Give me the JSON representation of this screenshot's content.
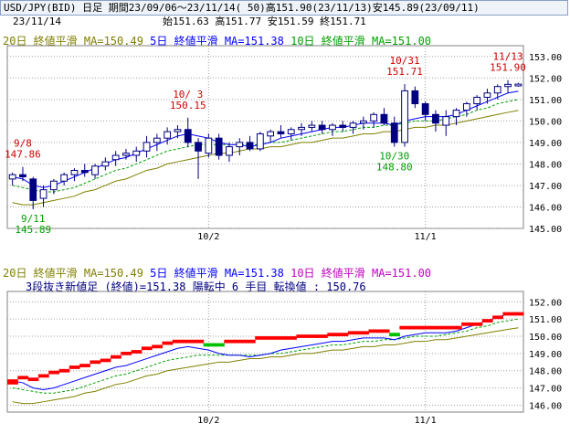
{
  "header": {
    "title": "USD/JPY(BID) 日足 期間23/09/06～23/11/14( 50)高151.90(23/11/13)安145.89(23/09/11)",
    "date": "23/11/14",
    "ohlc": "始151.63 高151.77 安151.59 終151.71"
  },
  "legend_top": {
    "ma20": "20日 終値平滑 MA=150.49",
    "ma5": "5日 終値平滑 MA=151.38",
    "ma10": "10日 終値平滑 MA=151.00"
  },
  "legend_bottom": {
    "ma20": "20日 終値平滑 MA=150.49",
    "ma5": "5日 終値平滑 MA=151.38",
    "ma10": "10日 終値平滑 MA=151.00",
    "kagi": "3段抜き新値足 (終値)=151.38 陽転中  6 手目 転換値 : 150.76"
  },
  "colors": {
    "up": "#ffffff",
    "down": "#000080",
    "ma5": "#0000ff",
    "ma10": "#00a000",
    "ma20": "#808000",
    "annot_high": "#d00000",
    "annot_low": "#00a000",
    "kagi_up": "#ff0000",
    "kagi_down": "#00c000",
    "grid": "#a0a0a0"
  },
  "chart_data": [
    {
      "type": "candlestick",
      "title": "USD/JPY(BID) 日足",
      "ylim": [
        145.0,
        153.5
      ],
      "y_ticks": [
        "153.00",
        "152.00",
        "151.00",
        "150.00",
        "149.00",
        "148.00",
        "147.00",
        "146.00",
        "145.00"
      ],
      "x_tick_labels": [
        "10/2",
        "11/1"
      ],
      "candles": [
        [
          147.3,
          147.6,
          147.0,
          147.5
        ],
        [
          147.5,
          147.86,
          147.2,
          147.4
        ],
        [
          147.3,
          147.4,
          145.89,
          146.3
        ],
        [
          146.4,
          147.0,
          146.0,
          146.8
        ],
        [
          146.8,
          147.3,
          146.6,
          147.2
        ],
        [
          147.2,
          147.6,
          147.0,
          147.5
        ],
        [
          147.5,
          147.8,
          147.2,
          147.7
        ],
        [
          147.7,
          148.0,
          147.4,
          147.6
        ],
        [
          147.5,
          148.0,
          147.3,
          147.9
        ],
        [
          147.9,
          148.3,
          147.7,
          148.1
        ],
        [
          148.2,
          148.6,
          147.9,
          148.4
        ],
        [
          148.4,
          148.7,
          148.2,
          148.5
        ],
        [
          148.4,
          148.8,
          148.1,
          148.6
        ],
        [
          148.6,
          149.3,
          148.3,
          149.0
        ],
        [
          149.0,
          149.4,
          148.6,
          149.2
        ],
        [
          149.2,
          149.7,
          148.9,
          149.5
        ],
        [
          149.5,
          149.8,
          149.2,
          149.6
        ],
        [
          149.6,
          150.15,
          148.8,
          149.0
        ],
        [
          149.0,
          149.2,
          147.3,
          148.6
        ],
        [
          148.5,
          149.4,
          148.3,
          149.2
        ],
        [
          149.2,
          149.4,
          148.2,
          148.4
        ],
        [
          148.4,
          149.0,
          148.1,
          148.8
        ],
        [
          148.8,
          149.2,
          148.4,
          149.0
        ],
        [
          149.0,
          149.3,
          148.6,
          148.7
        ],
        [
          148.7,
          149.5,
          148.6,
          149.4
        ],
        [
          149.3,
          149.6,
          149.0,
          149.5
        ],
        [
          149.5,
          149.8,
          149.2,
          149.4
        ],
        [
          149.4,
          149.7,
          149.1,
          149.6
        ],
        [
          149.6,
          149.9,
          149.3,
          149.7
        ],
        [
          149.7,
          150.0,
          149.5,
          149.8
        ],
        [
          149.8,
          150.0,
          149.4,
          149.6
        ],
        [
          149.6,
          149.9,
          149.3,
          149.8
        ],
        [
          149.8,
          150.0,
          149.5,
          149.7
        ],
        [
          149.7,
          150.0,
          149.4,
          149.9
        ],
        [
          149.9,
          150.2,
          149.6,
          150.0
        ],
        [
          150.0,
          150.4,
          149.7,
          150.3
        ],
        [
          150.3,
          150.6,
          149.8,
          149.9
        ],
        [
          149.9,
          150.2,
          148.8,
          149.0
        ],
        [
          149.0,
          151.71,
          148.8,
          151.4
        ],
        [
          151.4,
          151.6,
          150.6,
          150.8
        ],
        [
          150.8,
          150.9,
          150.0,
          150.3
        ],
        [
          150.3,
          150.5,
          149.5,
          149.9
        ],
        [
          149.8,
          150.5,
          149.3,
          150.2
        ],
        [
          150.2,
          150.6,
          149.8,
          150.5
        ],
        [
          150.5,
          150.9,
          150.2,
          150.8
        ],
        [
          150.8,
          151.2,
          150.5,
          151.1
        ],
        [
          151.1,
          151.5,
          150.8,
          151.3
        ],
        [
          151.3,
          151.7,
          151.0,
          151.6
        ],
        [
          151.6,
          151.9,
          151.3,
          151.7
        ],
        [
          151.63,
          151.77,
          151.59,
          151.71
        ]
      ],
      "annotations": [
        {
          "date": "9/8",
          "value": "147.86",
          "kind": "high",
          "index": 1
        },
        {
          "date": "9/11",
          "value": "145.89",
          "kind": "low",
          "index": 2
        },
        {
          "date": "10/ 3",
          "value": "150.15",
          "kind": "high",
          "index": 17
        },
        {
          "date": "10/31",
          "value": "151.71",
          "kind": "high",
          "index": 38
        },
        {
          "date": "10/30",
          "value": "148.80",
          "kind": "low",
          "index": 37
        },
        {
          "date": "11/13",
          "value": "151.90",
          "kind": "high",
          "index": 48
        }
      ],
      "series": [
        {
          "name": "5日 終値平滑",
          "values": [
            147.4,
            147.3,
            147.0,
            146.9,
            147.0,
            147.2,
            147.4,
            147.6,
            147.8,
            148.0,
            148.2,
            148.3,
            148.5,
            148.7,
            148.9,
            149.1,
            149.3,
            149.4,
            149.3,
            149.2,
            149.0,
            148.9,
            148.9,
            148.8,
            148.9,
            149.0,
            149.2,
            149.3,
            149.4,
            149.5,
            149.6,
            149.7,
            149.7,
            149.8,
            149.9,
            149.9,
            149.9,
            149.8,
            150.0,
            150.1,
            150.2,
            150.2,
            150.2,
            150.3,
            150.5,
            150.7,
            150.9,
            151.1,
            151.3,
            151.38
          ]
        },
        {
          "name": "10日 終値平滑",
          "values": [
            147.0,
            146.9,
            146.8,
            146.7,
            146.7,
            146.8,
            146.9,
            147.1,
            147.3,
            147.5,
            147.7,
            147.8,
            148.0,
            148.2,
            148.4,
            148.6,
            148.7,
            148.8,
            148.9,
            148.9,
            148.9,
            148.9,
            148.9,
            148.9,
            148.9,
            149.0,
            149.0,
            149.1,
            149.2,
            149.3,
            149.4,
            149.5,
            149.5,
            149.6,
            149.7,
            149.7,
            149.8,
            149.8,
            149.9,
            150.0,
            150.0,
            150.0,
            150.1,
            150.2,
            150.3,
            150.5,
            150.6,
            150.8,
            150.9,
            151.0
          ]
        },
        {
          "name": "20日 終値平滑",
          "values": [
            146.2,
            146.1,
            146.1,
            146.2,
            146.3,
            146.4,
            146.5,
            146.7,
            146.8,
            147.0,
            147.2,
            147.3,
            147.5,
            147.7,
            147.8,
            148.0,
            148.1,
            148.2,
            148.3,
            148.4,
            148.5,
            148.5,
            148.6,
            148.7,
            148.7,
            148.8,
            148.8,
            148.9,
            149.0,
            149.0,
            149.1,
            149.2,
            149.2,
            149.3,
            149.4,
            149.4,
            149.5,
            149.5,
            149.6,
            149.7,
            149.7,
            149.8,
            149.8,
            149.9,
            150.0,
            150.1,
            150.2,
            150.3,
            150.4,
            150.49
          ]
        }
      ]
    },
    {
      "type": "kagi_newprice",
      "title": "3段抜き新値足 (終値)",
      "ylim": [
        145.6,
        152.6
      ],
      "y_ticks": [
        "152.00",
        "151.00",
        "150.00",
        "149.00",
        "148.00",
        "147.00",
        "146.00"
      ],
      "x_tick_labels": [
        "10/2",
        "11/1"
      ],
      "bricks": [
        [
          147.2,
          147.5,
          "up"
        ],
        [
          147.5,
          147.7,
          "up"
        ],
        [
          147.4,
          147.6,
          "up"
        ],
        [
          147.6,
          147.8,
          "up"
        ],
        [
          147.8,
          148.0,
          "up"
        ],
        [
          147.9,
          148.1,
          "up"
        ],
        [
          148.1,
          148.3,
          "up"
        ],
        [
          148.2,
          148.4,
          "up"
        ],
        [
          148.4,
          148.6,
          "up"
        ],
        [
          148.5,
          148.7,
          "up"
        ],
        [
          148.7,
          148.9,
          "up"
        ],
        [
          148.9,
          149.1,
          "up"
        ],
        [
          149.0,
          149.2,
          "up"
        ],
        [
          149.2,
          149.4,
          "up"
        ],
        [
          149.3,
          149.5,
          "up"
        ],
        [
          149.5,
          149.7,
          "up"
        ],
        [
          149.6,
          149.8,
          "up"
        ],
        [
          149.6,
          149.8,
          "up"
        ],
        [
          149.6,
          149.8,
          "up"
        ],
        [
          149.4,
          149.6,
          "down"
        ],
        [
          149.4,
          149.6,
          "down"
        ],
        [
          149.6,
          149.8,
          "up"
        ],
        [
          149.6,
          149.8,
          "up"
        ],
        [
          149.6,
          149.8,
          "up"
        ],
        [
          149.8,
          150.0,
          "up"
        ],
        [
          149.8,
          150.0,
          "up"
        ],
        [
          149.8,
          150.0,
          "up"
        ],
        [
          149.8,
          150.0,
          "up"
        ],
        [
          149.9,
          150.1,
          "up"
        ],
        [
          149.9,
          150.1,
          "up"
        ],
        [
          149.9,
          150.1,
          "up"
        ],
        [
          150.0,
          150.2,
          "up"
        ],
        [
          150.0,
          150.2,
          "up"
        ],
        [
          150.1,
          150.3,
          "up"
        ],
        [
          150.1,
          150.3,
          "up"
        ],
        [
          150.2,
          150.4,
          "up"
        ],
        [
          150.2,
          150.4,
          "up"
        ],
        [
          150.0,
          150.2,
          "down"
        ],
        [
          150.4,
          150.6,
          "up"
        ],
        [
          150.4,
          150.6,
          "up"
        ],
        [
          150.4,
          150.6,
          "up"
        ],
        [
          150.4,
          150.6,
          "up"
        ],
        [
          150.4,
          150.6,
          "up"
        ],
        [
          150.4,
          150.6,
          "up"
        ],
        [
          150.6,
          150.8,
          "up"
        ],
        [
          150.6,
          150.8,
          "up"
        ],
        [
          150.8,
          151.0,
          "up"
        ],
        [
          151.0,
          151.2,
          "up"
        ],
        [
          151.2,
          151.4,
          "up"
        ],
        [
          151.2,
          151.4,
          "up"
        ]
      ]
    }
  ]
}
